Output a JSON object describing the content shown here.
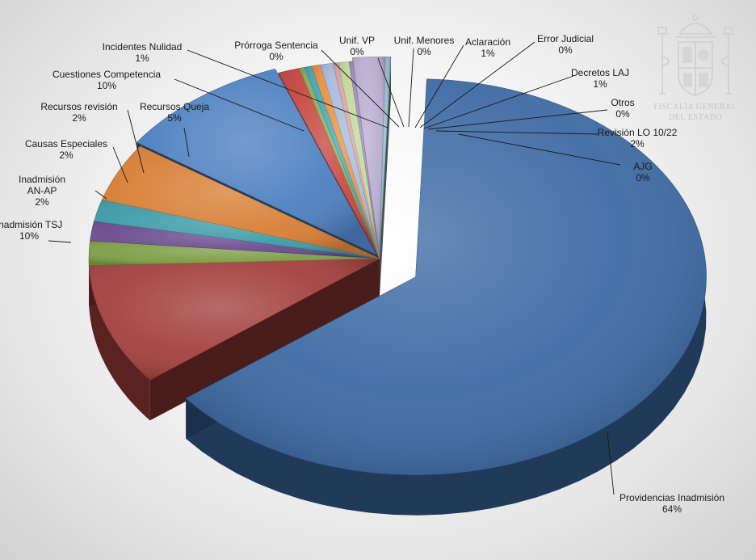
{
  "chart_data": {
    "type": "pie",
    "three_d": true,
    "title": "",
    "legend": "none",
    "slices": [
      {
        "label": "Providencias Inadmisión",
        "pct_label": "64%",
        "value": 64.2,
        "color": "#3d6aa4"
      },
      {
        "label": "Inadmisión TSJ",
        "pct_label": "10%",
        "value": 10.0,
        "color": "#a3403e"
      },
      {
        "label": "Inadmisión AN-AP",
        "pct_label": "2%",
        "value": 2.0,
        "color": "#7d9e45"
      },
      {
        "label": "Causas Especiales",
        "pct_label": "2%",
        "value": 1.6,
        "color": "#6a4a8e"
      },
      {
        "label": "Recursos revisión",
        "pct_label": "2%",
        "value": 1.8,
        "color": "#3b9aa8"
      },
      {
        "label": "Recursos Queja",
        "pct_label": "5%",
        "value": 4.8,
        "color": "#d77e34"
      },
      {
        "label": "Cuestiones Competencia",
        "pct_label": "10%",
        "value": 9.8,
        "color": "#4d80c0"
      },
      {
        "label": "Incidentes Nulidad",
        "pct_label": "1%",
        "value": 1.2,
        "color": "#c5453f"
      },
      {
        "label": "Prórroga Sentencia",
        "pct_label": "0%",
        "value": 0.3,
        "color": "#8cab55"
      },
      {
        "label": "Unif. VP",
        "pct_label": "0%",
        "value": 0.4,
        "color": "#3fa7bd"
      },
      {
        "label": "Unif. Menores",
        "pct_label": "0%",
        "value": 0.5,
        "color": "#e9913c"
      },
      {
        "label": "Aclaración",
        "pct_label": "1%",
        "value": 0.7,
        "color": "#a7b9dc"
      },
      {
        "label": "Error Judicial",
        "pct_label": "0%",
        "value": 0.3,
        "color": "#dba3a2"
      },
      {
        "label": "Decretos LAJ",
        "pct_label": "1%",
        "value": 0.6,
        "color": "#c2d69a"
      },
      {
        "label": "Otros",
        "pct_label": "0%",
        "value": 0.2,
        "color": "#9d8dbc"
      },
      {
        "label": "Revisión LO 10/22",
        "pct_label": "2%",
        "value": 1.8,
        "color": "#b9acd0"
      },
      {
        "label": "AJG",
        "pct_label": "0%",
        "value": 0.3,
        "color": "#8fb4c4"
      }
    ]
  },
  "logo": {
    "line1": "FISCALÍA GENERAL",
    "line2": "DEL ESTADO"
  }
}
